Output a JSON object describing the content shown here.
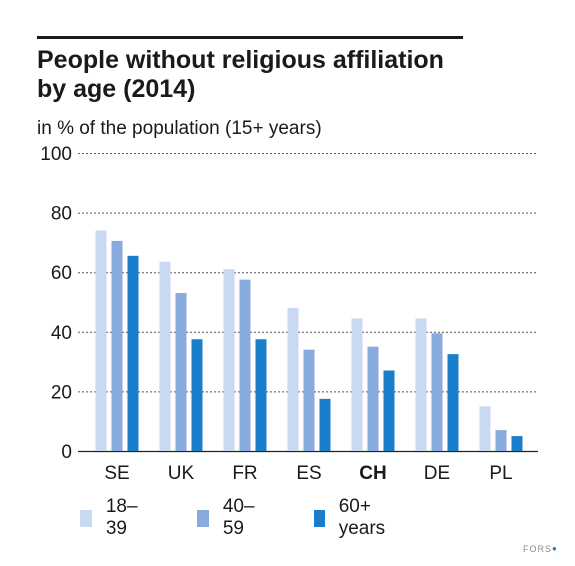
{
  "title_line1": "People without religious affiliation",
  "title_line2": "by age (2014)",
  "subtitle": "in % of the population (15+ years)",
  "source": "FORS",
  "colors": {
    "series_18_39": "#c9d9f2",
    "series_40_59": "#86abdc",
    "series_60_plus": "#1a7ecb",
    "grid": "#555555",
    "text": "#1a1a1a"
  },
  "chart_data": {
    "type": "bar",
    "title": "People without religious affiliation by age (2014)",
    "ylabel": "in % of the population (15+ years)",
    "xlabel": "",
    "categories": [
      "SE",
      "UK",
      "FR",
      "ES",
      "CH",
      "DE",
      "PL"
    ],
    "highlighted_category": "CH",
    "series": [
      {
        "name": "18–39",
        "color": "#c9d9f2",
        "values": [
          74,
          63.5,
          61,
          48,
          44.5,
          44.5,
          15
        ]
      },
      {
        "name": "40–59",
        "color": "#86abdc",
        "values": [
          70.5,
          53,
          57.5,
          34,
          35,
          39.5,
          7
        ]
      },
      {
        "name": "60+ years",
        "color": "#1a7ecb",
        "values": [
          65.5,
          37.5,
          37.5,
          17.5,
          27,
          32.5,
          5
        ]
      }
    ],
    "ylim": [
      0,
      100
    ],
    "yticks": [
      0,
      20,
      40,
      60,
      80,
      100
    ],
    "grid": "dashed horizontal",
    "legend": "bottom"
  }
}
